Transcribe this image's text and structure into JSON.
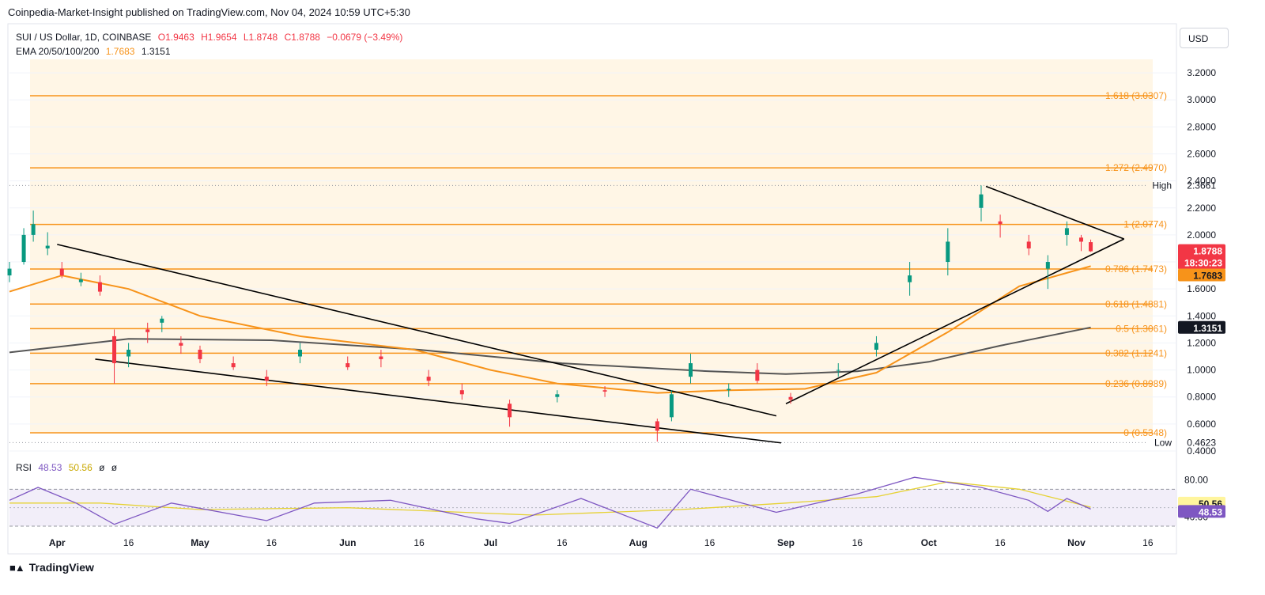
{
  "header": {
    "published": "Coinpedia-Market-Insight published on TradingView.com, Nov 04, 2024 10:59 UTC+5:30"
  },
  "legend": {
    "symbol": "SUI / US Dollar, 1D, COINBASE",
    "open": "O1.9463",
    "high": "H1.9654",
    "low": "L1.8748",
    "close": "C1.8788",
    "change": "−0.0679 (−3.49%)",
    "ema_label": "EMA 20/50/100/200",
    "ema_val1": "1.7683",
    "ema_val2": "1.3151",
    "rsi_label": "RSI",
    "rsi_val": "48.53",
    "rsi_ma": "50.56",
    "rsi_na1": "ø",
    "rsi_na2": "ø"
  },
  "currency": "USD",
  "brand": "TradingView",
  "colors": {
    "up": "#089981",
    "down": "#f23645",
    "fib": "#f7931a",
    "ema50": "#f7931a",
    "ema200": "#555555",
    "trendline": "#000000",
    "rsi": "#7e57c2",
    "rsi_ma": "#e6d234",
    "shade": "#fff4e0"
  },
  "chart_data": {
    "type": "candlestick",
    "symbol": "SUI / US Dollar",
    "interval": "1D",
    "exchange": "COINBASE",
    "ylim": [
      0.4,
      3.3
    ],
    "y_ticks": [
      "3.2000",
      "3.0000",
      "2.8000",
      "2.6000",
      "2.4000",
      "2.2000",
      "2.0000",
      "1.8000",
      "1.6000",
      "1.4000",
      "1.2000",
      "1.0000",
      "0.8000",
      "0.6000",
      "0.4000"
    ],
    "x_ticks": [
      "Apr",
      "16",
      "May",
      "16",
      "Jun",
      "16",
      "Jul",
      "16",
      "Aug",
      "16",
      "Sep",
      "16",
      "Oct",
      "16",
      "Nov",
      "16"
    ],
    "x_range": [
      "2024-03-22",
      "2024-11-22"
    ],
    "last_bar": {
      "date": "2024-11-04",
      "open": 1.9463,
      "high": 1.9654,
      "low": 1.8748,
      "close": 1.8788
    },
    "candles_approx": [
      [
        "2024-03-22",
        1.7,
        1.8,
        1.65,
        1.75
      ],
      [
        "2024-03-25",
        1.8,
        2.05,
        1.78,
        2.0
      ],
      [
        "2024-03-27",
        2.0,
        2.18,
        1.95,
        2.08
      ],
      [
        "2024-03-30",
        1.9,
        2.02,
        1.85,
        1.92
      ],
      [
        "2024-04-02",
        1.75,
        1.8,
        1.68,
        1.7
      ],
      [
        "2024-04-06",
        1.65,
        1.72,
        1.62,
        1.67
      ],
      [
        "2024-04-10",
        1.65,
        1.7,
        1.55,
        1.58
      ],
      [
        "2024-04-13",
        1.25,
        1.3,
        0.9,
        1.05
      ],
      [
        "2024-04-16",
        1.1,
        1.2,
        1.02,
        1.15
      ],
      [
        "2024-04-20",
        1.3,
        1.35,
        1.2,
        1.28
      ],
      [
        "2024-04-23",
        1.35,
        1.4,
        1.28,
        1.38
      ],
      [
        "2024-04-27",
        1.2,
        1.25,
        1.12,
        1.18
      ],
      [
        "2024-05-01",
        1.15,
        1.18,
        1.05,
        1.08
      ],
      [
        "2024-05-08",
        1.05,
        1.1,
        1.0,
        1.02
      ],
      [
        "2024-05-15",
        0.95,
        1.0,
        0.88,
        0.92
      ],
      [
        "2024-05-22",
        1.1,
        1.2,
        1.05,
        1.15
      ],
      [
        "2024-06-01",
        1.05,
        1.1,
        1.0,
        1.02
      ],
      [
        "2024-06-08",
        1.1,
        1.15,
        1.02,
        1.08
      ],
      [
        "2024-06-18",
        0.95,
        1.0,
        0.88,
        0.92
      ],
      [
        "2024-06-25",
        0.85,
        0.9,
        0.78,
        0.82
      ],
      [
        "2024-07-05",
        0.75,
        0.78,
        0.58,
        0.65
      ],
      [
        "2024-07-15",
        0.8,
        0.85,
        0.76,
        0.82
      ],
      [
        "2024-07-25",
        0.85,
        0.88,
        0.8,
        0.84
      ],
      [
        "2024-08-05",
        0.62,
        0.64,
        0.47,
        0.55
      ],
      [
        "2024-08-08",
        0.65,
        0.85,
        0.62,
        0.82
      ],
      [
        "2024-08-12",
        0.95,
        1.12,
        0.9,
        1.05
      ],
      [
        "2024-08-20",
        0.85,
        0.9,
        0.8,
        0.86
      ],
      [
        "2024-08-26",
        1.0,
        1.05,
        0.9,
        0.92
      ],
      [
        "2024-09-02",
        0.8,
        0.83,
        0.75,
        0.78
      ],
      [
        "2024-09-12",
        1.0,
        1.05,
        0.95,
        1.0
      ],
      [
        "2024-09-20",
        1.15,
        1.25,
        1.1,
        1.2
      ],
      [
        "2024-09-27",
        1.65,
        1.8,
        1.55,
        1.7
      ],
      [
        "2024-10-05",
        1.8,
        2.05,
        1.7,
        1.95
      ],
      [
        "2024-10-12",
        2.2,
        2.3661,
        2.1,
        2.3
      ],
      [
        "2024-10-16",
        2.1,
        2.15,
        1.98,
        2.08
      ],
      [
        "2024-10-22",
        1.95,
        2.0,
        1.85,
        1.9
      ],
      [
        "2024-10-26",
        1.75,
        1.85,
        1.6,
        1.8
      ],
      [
        "2024-10-30",
        2.0,
        2.1,
        1.92,
        2.05
      ],
      [
        "2024-11-02",
        1.98,
        2.0,
        1.88,
        1.95
      ],
      [
        "2024-11-04",
        1.9463,
        1.9654,
        1.8748,
        1.8788
      ]
    ],
    "ema_50_approx": [
      [
        "2024-03-22",
        1.58
      ],
      [
        "2024-04-02",
        1.7
      ],
      [
        "2024-04-16",
        1.6
      ],
      [
        "2024-05-01",
        1.4
      ],
      [
        "2024-05-22",
        1.25
      ],
      [
        "2024-06-15",
        1.15
      ],
      [
        "2024-07-01",
        1.0
      ],
      [
        "2024-07-15",
        0.9
      ],
      [
        "2024-08-05",
        0.83
      ],
      [
        "2024-08-20",
        0.85
      ],
      [
        "2024-09-05",
        0.86
      ],
      [
        "2024-09-20",
        0.98
      ],
      [
        "2024-10-05",
        1.28
      ],
      [
        "2024-10-20",
        1.62
      ],
      [
        "2024-11-04",
        1.7683
      ]
    ],
    "ema_200_approx": [
      [
        "2024-03-22",
        1.13
      ],
      [
        "2024-04-16",
        1.23
      ],
      [
        "2024-05-16",
        1.22
      ],
      [
        "2024-06-16",
        1.15
      ],
      [
        "2024-07-16",
        1.05
      ],
      [
        "2024-08-16",
        0.99
      ],
      [
        "2024-09-01",
        0.97
      ],
      [
        "2024-09-16",
        0.99
      ],
      [
        "2024-10-01",
        1.06
      ],
      [
        "2024-10-16",
        1.18
      ],
      [
        "2024-11-04",
        1.3151
      ]
    ],
    "price_labels": [
      {
        "label": "High",
        "value": "2.3661",
        "y": 2.3661
      },
      {
        "label": "Low",
        "value": "0.4623",
        "y": 0.4623
      }
    ],
    "current": {
      "price": "1.8788",
      "countdown": "18:30:23",
      "ema50": "1.7683",
      "ema200": "1.3151"
    },
    "fib_levels": [
      {
        "label": "1.618 (3.0307)",
        "y": 3.0307
      },
      {
        "label": "1.272 (2.4970)",
        "y": 2.497
      },
      {
        "label": "1 (2.0774)",
        "y": 2.0774
      },
      {
        "label": "0.786 (1.7473)",
        "y": 1.7473
      },
      {
        "label": "0.618 (1.4881)",
        "y": 1.4881
      },
      {
        "label": "0.5 (1.3061)",
        "y": 1.3061
      },
      {
        "label": "0.382 (1.1241)",
        "y": 1.1241
      },
      {
        "label": "0.236 (0.8989)",
        "y": 0.8989
      },
      {
        "label": "0 (0.5348)",
        "y": 0.5348
      }
    ],
    "trendlines_approx": [
      {
        "from": [
          "2024-04-01",
          1.93
        ],
        "to": [
          "2024-08-30",
          0.66
        ]
      },
      {
        "from": [
          "2024-04-09",
          1.08
        ],
        "to": [
          "2024-08-31",
          0.46
        ]
      },
      {
        "from": [
          "2024-09-01",
          0.75
        ],
        "to": [
          "2024-11-11",
          1.97
        ]
      },
      {
        "from": [
          "2024-10-13",
          2.36
        ],
        "to": [
          "2024-11-11",
          1.97
        ]
      }
    ],
    "rsi": {
      "ylim": [
        30,
        90
      ],
      "y_ticks": [
        "80.00",
        "40.00"
      ],
      "bands": [
        70,
        30
      ],
      "midline": 50,
      "current": "48.53",
      "ma_current": "50.56",
      "rsi_approx": [
        [
          "2024-03-22",
          58
        ],
        [
          "2024-03-28",
          72
        ],
        [
          "2024-04-05",
          55
        ],
        [
          "2024-04-13",
          32
        ],
        [
          "2024-04-25",
          55
        ],
        [
          "2024-05-15",
          36
        ],
        [
          "2024-05-25",
          55
        ],
        [
          "2024-06-10",
          58
        ],
        [
          "2024-06-28",
          38
        ],
        [
          "2024-07-05",
          33
        ],
        [
          "2024-07-20",
          60
        ],
        [
          "2024-08-05",
          28
        ],
        [
          "2024-08-12",
          70
        ],
        [
          "2024-08-30",
          45
        ],
        [
          "2024-09-16",
          65
        ],
        [
          "2024-09-28",
          83
        ],
        [
          "2024-10-12",
          72
        ],
        [
          "2024-10-22",
          58
        ],
        [
          "2024-10-26",
          46
        ],
        [
          "2024-10-30",
          60
        ],
        [
          "2024-11-04",
          48.53
        ]
      ],
      "ma_approx": [
        [
          "2024-03-22",
          55
        ],
        [
          "2024-04-10",
          55
        ],
        [
          "2024-05-01",
          48
        ],
        [
          "2024-06-01",
          50
        ],
        [
          "2024-07-10",
          42
        ],
        [
          "2024-08-10",
          48
        ],
        [
          "2024-09-01",
          55
        ],
        [
          "2024-09-20",
          62
        ],
        [
          "2024-10-05",
          78
        ],
        [
          "2024-10-20",
          70
        ],
        [
          "2024-11-04",
          50.56
        ]
      ]
    }
  }
}
